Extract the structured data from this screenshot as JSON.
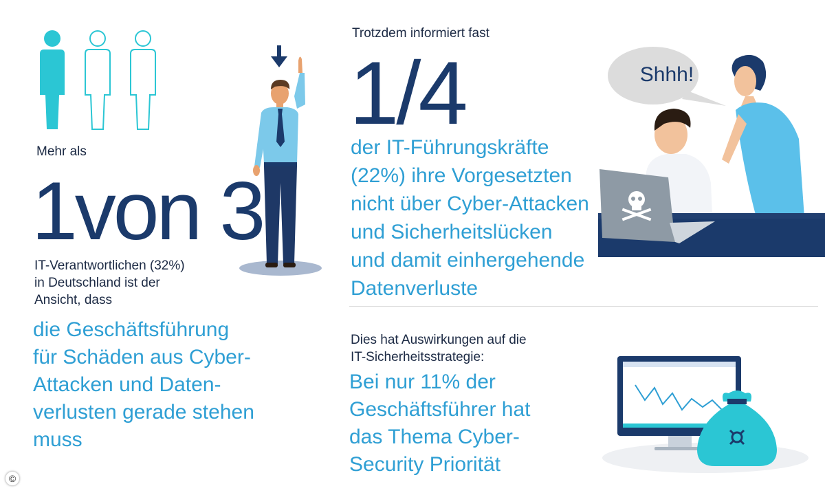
{
  "left": {
    "intro": "Mehr als",
    "big_number": "1von 3",
    "subtext_lines": [
      "IT-Verantwortlichen (32%)",
      "in Deutschland ist der",
      "Ansicht, dass"
    ],
    "highlight_lines": [
      "die Geschäftsführung",
      "für Schäden aus Cyber-",
      "Attacken und Daten-",
      "verlusten gerade stehen",
      "muss"
    ]
  },
  "top_right": {
    "intro": "Trotzdem informiert fast",
    "big_number": "1/4",
    "highlight_lines": [
      "der IT-Führungskräfte",
      "(22%) ihre Vorgesetzten",
      "nicht über Cyber-Attacken",
      "und Sicherheitslücken",
      "und damit einhergehende",
      "Datenverluste"
    ],
    "speech_bubble": "Shhh!"
  },
  "bottom_right": {
    "intro_lines": [
      "Dies hat Auswirkungen auf die",
      "IT-Sicherheitsstrategie:"
    ],
    "highlight_lines": [
      "Bei nur 11% der",
      "Geschäftsführer hat",
      "das Thema Cyber-",
      "Security Priorität"
    ]
  },
  "copyright": "©",
  "colors": {
    "navy": "#1b3a6b",
    "accent_blue": "#2f9fd4",
    "cyan": "#2bc6d4",
    "light_blue": "#7cc9ea"
  }
}
